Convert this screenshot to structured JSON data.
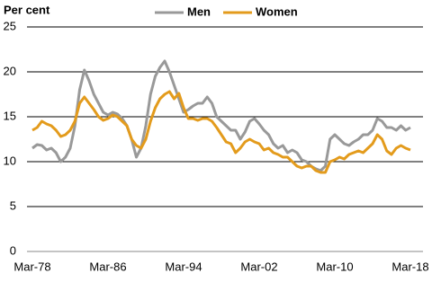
{
  "chart_data": {
    "type": "line",
    "y_label": "Per cent",
    "categories": [
      "Mar-78",
      null,
      null,
      null,
      null,
      null,
      null,
      null,
      null,
      null,
      null,
      null,
      null,
      null,
      null,
      null,
      "Mar-86",
      null,
      null,
      null,
      null,
      null,
      null,
      null,
      null,
      null,
      null,
      null,
      null,
      null,
      null,
      null,
      "Mar-94",
      null,
      null,
      null,
      null,
      null,
      null,
      null,
      null,
      null,
      null,
      null,
      null,
      null,
      null,
      null,
      "Mar-02",
      null,
      null,
      null,
      null,
      null,
      null,
      null,
      null,
      null,
      null,
      null,
      null,
      null,
      null,
      null,
      "Mar-10",
      null,
      null,
      null,
      null,
      null,
      null,
      null,
      null,
      null,
      null,
      null,
      null,
      null,
      null,
      null,
      "Mar-18"
    ],
    "series": [
      {
        "name": "Men",
        "color": "#999999",
        "values": [
          11.5,
          11.9,
          11.8,
          11.3,
          11.5,
          11.0,
          10.0,
          10.5,
          11.5,
          14,
          18,
          20.2,
          19,
          17.5,
          16.5,
          15.5,
          15.2,
          15.5,
          15.3,
          14.8,
          14,
          12.5,
          10.5,
          11.5,
          14,
          17.5,
          19.5,
          20.5,
          21.2,
          20,
          18.5,
          17,
          15.5,
          15.8,
          16.2,
          16.5,
          16.5,
          17.2,
          16.5,
          15,
          14.5,
          14,
          13.5,
          13.5,
          12.5,
          13.3,
          14.5,
          14.8,
          14.2,
          13.5,
          13,
          12,
          11.5,
          11.8,
          11,
          11.3,
          11,
          10.2,
          10,
          9.5,
          9.2,
          9.0,
          9.5,
          12.5,
          13,
          12.5,
          12,
          11.8,
          12.2,
          12.5,
          13,
          13,
          13.5,
          14.8,
          14.5,
          13.8,
          13.8,
          13.5,
          14,
          13.5,
          13.8
        ]
      },
      {
        "name": "Women",
        "color": "#E39B1C",
        "values": [
          13.5,
          13.8,
          14.5,
          14.2,
          14.0,
          13.5,
          12.8,
          13,
          13.5,
          14.5,
          16.5,
          17.2,
          16.5,
          15.8,
          15,
          14.6,
          14.8,
          15.2,
          15,
          14.5,
          14,
          12.5,
          11.8,
          11.5,
          12.5,
          14.5,
          16,
          17,
          17.5,
          17.8,
          17,
          17.6,
          16,
          14.8,
          14.8,
          14.6,
          14.8,
          14.8,
          14.5,
          13.8,
          13,
          12.2,
          12,
          11,
          11.5,
          12.2,
          12.5,
          12.2,
          12.0,
          11.3,
          11.5,
          11,
          10.8,
          10.5,
          10.5,
          10,
          9.5,
          9.3,
          9.5,
          9.5,
          9,
          8.8,
          8.8,
          10,
          10.2,
          10.5,
          10.3,
          10.8,
          11,
          11.2,
          11,
          11.5,
          12,
          13,
          12.5,
          11.2,
          10.8,
          11.5,
          11.8,
          11.5,
          11.3
        ]
      }
    ],
    "ylim": [
      0,
      25
    ],
    "yticks": [
      0,
      5,
      10,
      15,
      20,
      25
    ],
    "grid": true,
    "legend": "top"
  }
}
